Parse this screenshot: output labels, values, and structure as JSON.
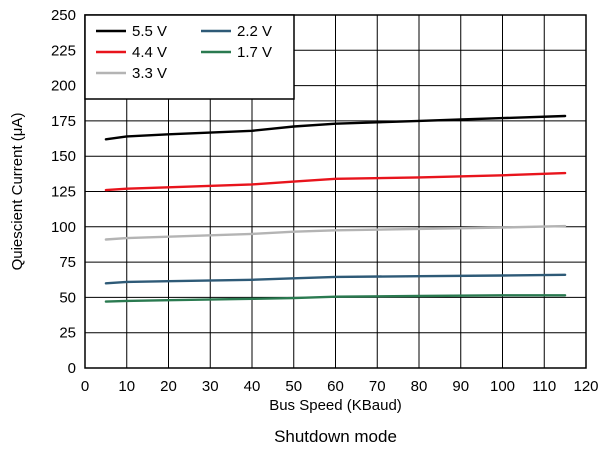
{
  "chart_data": {
    "type": "line",
    "xlabel": "Bus Speed (KBaud)",
    "ylabel": "Quiescient Current (μA)",
    "caption": "Shutdown mode",
    "xlim": [
      0,
      120
    ],
    "ylim": [
      0,
      250
    ],
    "xticks": [
      0,
      10,
      20,
      30,
      40,
      50,
      60,
      70,
      80,
      90,
      100,
      110,
      120
    ],
    "yticks": [
      0,
      25,
      50,
      75,
      100,
      125,
      150,
      175,
      200,
      225,
      250
    ],
    "grid": true,
    "legend_position": "top-left",
    "series": [
      {
        "name": "5.5 V",
        "color": "#000000",
        "points": [
          [
            5,
            162
          ],
          [
            10,
            164
          ],
          [
            20,
            165.5
          ],
          [
            40,
            168
          ],
          [
            50,
            171
          ],
          [
            60,
            173
          ],
          [
            70,
            174
          ],
          [
            80,
            175
          ],
          [
            90,
            176
          ],
          [
            100,
            177
          ],
          [
            115,
            178.5
          ]
        ]
      },
      {
        "name": "4.4 V",
        "color": "#e8141c",
        "points": [
          [
            5,
            126
          ],
          [
            10,
            127
          ],
          [
            20,
            128
          ],
          [
            40,
            130
          ],
          [
            50,
            132
          ],
          [
            60,
            134
          ],
          [
            80,
            135
          ],
          [
            100,
            136.5
          ],
          [
            115,
            138
          ]
        ]
      },
      {
        "name": "3.3 V",
        "color": "#b4b4b4",
        "points": [
          [
            5,
            91
          ],
          [
            10,
            92
          ],
          [
            20,
            93
          ],
          [
            40,
            95
          ],
          [
            50,
            96.5
          ],
          [
            60,
            97.5
          ],
          [
            80,
            98.5
          ],
          [
            100,
            99.5
          ],
          [
            115,
            100.5
          ]
        ]
      },
      {
        "name": "2.2 V",
        "color": "#2e5a77",
        "points": [
          [
            5,
            60
          ],
          [
            10,
            61
          ],
          [
            20,
            61.5
          ],
          [
            40,
            62.5
          ],
          [
            50,
            63.5
          ],
          [
            60,
            64.5
          ],
          [
            80,
            65
          ],
          [
            100,
            65.5
          ],
          [
            115,
            66
          ]
        ]
      },
      {
        "name": "1.7 V",
        "color": "#2a7a50",
        "points": [
          [
            5,
            47
          ],
          [
            10,
            47.5
          ],
          [
            20,
            48
          ],
          [
            40,
            49
          ],
          [
            50,
            49.5
          ],
          [
            60,
            50.5
          ],
          [
            80,
            51
          ],
          [
            100,
            51.5
          ],
          [
            115,
            51.5
          ]
        ]
      }
    ]
  }
}
